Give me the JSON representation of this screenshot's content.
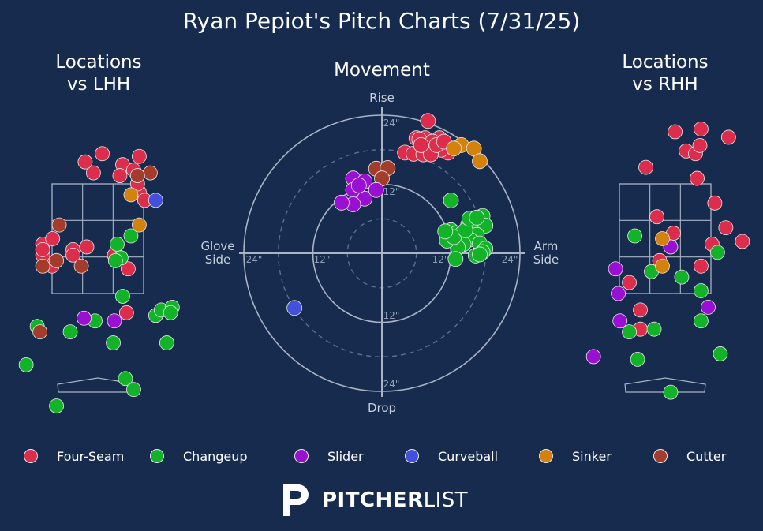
{
  "title": "Ryan Pepiot's Pitch Charts (7/31/25)",
  "brand": {
    "name_bold": "PITCHER",
    "name_light": "LIST"
  },
  "colors": {
    "background": "#162b4e",
    "Four-Seam": "#dc2e4c",
    "Changeup": "#13b329",
    "Slider": "#9a10d3",
    "Curveball": "#4350db",
    "Sinker": "#d4820e",
    "Cutter": "#a43c2c"
  },
  "legend": [
    "Four-Seam",
    "Changeup",
    "Slider",
    "Curveball",
    "Sinker",
    "Cutter"
  ],
  "chart_data": [
    {
      "type": "scatter",
      "title": "Locations\nvs LHH",
      "note": "Strike zone locations, catcher's view; x = plate_x (ft), y = plate_z (ft)",
      "xlim": [
        -2.3,
        2.3
      ],
      "ylim": [
        -0.2,
        5.0
      ],
      "zone": {
        "x": [
          -0.83,
          0.83
        ],
        "z": [
          1.5,
          3.5
        ]
      },
      "points": [
        {
          "pitch": "Four-Seam",
          "x": -2.05,
          "z": 3.6
        },
        {
          "pitch": "Four-Seam",
          "x": 0.08,
          "z": 4.05
        },
        {
          "pitch": "Four-Seam",
          "x": -1.0,
          "z": 2.4
        },
        {
          "pitch": "Four-Seam",
          "x": -1.0,
          "z": 2.2
        },
        {
          "pitch": "Four-Seam",
          "x": -0.82,
          "z": 2.5
        },
        {
          "pitch": "Four-Seam",
          "x": -0.83,
          "z": 2.0
        },
        {
          "pitch": "Four-Seam",
          "x": -0.45,
          "z": 2.3
        },
        {
          "pitch": "Four-Seam",
          "x": -0.08,
          "z": 3.7
        },
        {
          "pitch": "Four-Seam",
          "x": -0.23,
          "z": 3.9
        },
        {
          "pitch": "Four-Seam",
          "x": 0.45,
          "z": 3.85
        },
        {
          "pitch": "Four-Seam",
          "x": 0.75,
          "z": 4.0
        },
        {
          "pitch": "Four-Seam",
          "x": 0.65,
          "z": 3.75
        },
        {
          "pitch": "Four-Seam",
          "x": 0.4,
          "z": 3.65
        },
        {
          "pitch": "Four-Seam",
          "x": 0.75,
          "z": 3.35
        },
        {
          "pitch": "Four-Seam",
          "x": 0.72,
          "z": 3.5
        },
        {
          "pitch": "Four-Seam",
          "x": -0.2,
          "z": 2.35
        },
        {
          "pitch": "Four-Seam",
          "x": -0.45,
          "z": 2.2
        },
        {
          "pitch": "Four-Seam",
          "x": 0.3,
          "z": 2.2
        },
        {
          "pitch": "Four-Seam",
          "x": 0.55,
          "z": 1.95
        },
        {
          "pitch": "Four-Seam",
          "x": -1.0,
          "z": 2.3
        },
        {
          "pitch": "Four-Seam",
          "x": 0.52,
          "z": 1.15
        },
        {
          "pitch": "Four-Seam",
          "x": 0.85,
          "z": 3.2
        },
        {
          "pitch": "Changeup",
          "x": 0.6,
          "z": 2.55
        },
        {
          "pitch": "Changeup",
          "x": 0.35,
          "z": 2.4
        },
        {
          "pitch": "Changeup",
          "x": 0.42,
          "z": 2.15
        },
        {
          "pitch": "Changeup",
          "x": 0.45,
          "z": 1.45
        },
        {
          "pitch": "Changeup",
          "x": 0.32,
          "z": 2.1
        },
        {
          "pitch": "Changeup",
          "x": -0.05,
          "z": 1.0
        },
        {
          "pitch": "Changeup",
          "x": -0.5,
          "z": 0.8
        },
        {
          "pitch": "Changeup",
          "x": 0.28,
          "z": 0.6
        },
        {
          "pitch": "Changeup",
          "x": -1.1,
          "z": 0.9
        },
        {
          "pitch": "Changeup",
          "x": 1.05,
          "z": 1.1
        },
        {
          "pitch": "Changeup",
          "x": 1.15,
          "z": 1.2
        },
        {
          "pitch": "Changeup",
          "x": 1.25,
          "z": 0.6
        },
        {
          "pitch": "Changeup",
          "x": 0.65,
          "z": -0.25
        },
        {
          "pitch": "Changeup",
          "x": 0.5,
          "z": -0.05
        },
        {
          "pitch": "Changeup",
          "x": -0.75,
          "z": -0.55
        },
        {
          "pitch": "Changeup",
          "x": -1.3,
          "z": 0.2
        },
        {
          "pitch": "Changeup",
          "x": 1.35,
          "z": 1.25
        },
        {
          "pitch": "Changeup",
          "x": 1.32,
          "z": 1.15
        },
        {
          "pitch": "Slider",
          "x": -0.25,
          "z": 1.05
        },
        {
          "pitch": "Slider",
          "x": 0.3,
          "z": 1.0
        },
        {
          "pitch": "Curveball",
          "x": 1.05,
          "z": 3.2
        },
        {
          "pitch": "Sinker",
          "x": 0.75,
          "z": 2.75
        },
        {
          "pitch": "Sinker",
          "x": 0.6,
          "z": 3.3
        },
        {
          "pitch": "Cutter",
          "x": -0.7,
          "z": 2.75
        },
        {
          "pitch": "Cutter",
          "x": -0.3,
          "z": 2.0
        },
        {
          "pitch": "Cutter",
          "x": -0.75,
          "z": 2.1
        },
        {
          "pitch": "Cutter",
          "x": -1.0,
          "z": 2.0
        },
        {
          "pitch": "Cutter",
          "x": 0.95,
          "z": 3.7
        },
        {
          "pitch": "Cutter",
          "x": -1.05,
          "z": 0.8
        },
        {
          "pitch": "Cutter",
          "x": 0.72,
          "z": 3.65
        }
      ]
    },
    {
      "type": "scatter",
      "title": "Movement",
      "note": "Polar movement plot; x = horizontal break (in, + arm side), y = induced vertical break (in, + rise)",
      "rings": [
        6,
        12,
        18,
        24
      ],
      "axis_labels": {
        "top": "Rise",
        "bottom": "Drop",
        "left": "Glove\nSide",
        "right": "Arm\nSide"
      },
      "tick_labels": {
        "top": "24\"",
        "top_inner": "12\"",
        "bottom": "24\"",
        "bottom_inner": "12\"",
        "left": "24\"",
        "left_inner": "12\"",
        "right": "24\"",
        "right_inner": "12\""
      },
      "points": [
        {
          "pitch": "Four-Seam",
          "x": 8.0,
          "y": 23.0
        },
        {
          "pitch": "Four-Seam",
          "x": 6.0,
          "y": 20.0
        },
        {
          "pitch": "Four-Seam",
          "x": 7.5,
          "y": 20.0
        },
        {
          "pitch": "Four-Seam",
          "x": 10.0,
          "y": 20.0
        },
        {
          "pitch": "Four-Seam",
          "x": 9.0,
          "y": 18.0
        },
        {
          "pitch": "Four-Seam",
          "x": 11.5,
          "y": 17.5
        },
        {
          "pitch": "Four-Seam",
          "x": 4.0,
          "y": 17.5
        },
        {
          "pitch": "Four-Seam",
          "x": 5.5,
          "y": 17.3
        },
        {
          "pitch": "Four-Seam",
          "x": 6.5,
          "y": 19.8
        },
        {
          "pitch": "Four-Seam",
          "x": 7.5,
          "y": 18.6
        },
        {
          "pitch": "Four-Seam",
          "x": 8.8,
          "y": 19.4
        },
        {
          "pitch": "Four-Seam",
          "x": 7.2,
          "y": 17.2
        },
        {
          "pitch": "Four-Seam",
          "x": 10.3,
          "y": 18.0
        },
        {
          "pitch": "Four-Seam",
          "x": 8.5,
          "y": 17.2
        },
        {
          "pitch": "Four-Seam",
          "x": 6.8,
          "y": 18.8
        },
        {
          "pitch": "Four-Seam",
          "x": 9.5,
          "y": 18.8
        },
        {
          "pitch": "Four-Seam",
          "x": 10.8,
          "y": 19.4
        },
        {
          "pitch": "Sinker",
          "x": 13.8,
          "y": 18.8
        },
        {
          "pitch": "Sinker",
          "x": 12.5,
          "y": 18.2
        },
        {
          "pitch": "Sinker",
          "x": 16.0,
          "y": 18.2
        },
        {
          "pitch": "Sinker",
          "x": 17.0,
          "y": 16.0
        },
        {
          "pitch": "Cutter",
          "x": -1.0,
          "y": 14.7
        },
        {
          "pitch": "Cutter",
          "x": 1.0,
          "y": 14.8
        },
        {
          "pitch": "Cutter",
          "x": 0.0,
          "y": 13.0
        },
        {
          "pitch": "Slider",
          "x": -5.0,
          "y": 13.0
        },
        {
          "pitch": "Slider",
          "x": -3.0,
          "y": 12.5
        },
        {
          "pitch": "Slider",
          "x": -5.0,
          "y": 11.0
        },
        {
          "pitch": "Slider",
          "x": -3.0,
          "y": 9.5
        },
        {
          "pitch": "Slider",
          "x": -5.0,
          "y": 8.5
        },
        {
          "pitch": "Slider",
          "x": -7.0,
          "y": 8.8
        },
        {
          "pitch": "Slider",
          "x": -1.0,
          "y": 11.0
        },
        {
          "pitch": "Slider",
          "x": -4.0,
          "y": 11.8
        },
        {
          "pitch": "Curveball",
          "x": -15.2,
          "y": -9.5
        },
        {
          "pitch": "Changeup",
          "x": 12.0,
          "y": 9.2
        },
        {
          "pitch": "Changeup",
          "x": 12.0,
          "y": 4.0
        },
        {
          "pitch": "Changeup",
          "x": 13.0,
          "y": 3.5
        },
        {
          "pitch": "Changeup",
          "x": 14.0,
          "y": 3.5
        },
        {
          "pitch": "Changeup",
          "x": 15.0,
          "y": 5.0
        },
        {
          "pitch": "Changeup",
          "x": 16.0,
          "y": 5.3
        },
        {
          "pitch": "Changeup",
          "x": 17.5,
          "y": 6.5
        },
        {
          "pitch": "Changeup",
          "x": 18.0,
          "y": 4.8
        },
        {
          "pitch": "Changeup",
          "x": 16.5,
          "y": 3.2
        },
        {
          "pitch": "Changeup",
          "x": 15.3,
          "y": 2.4
        },
        {
          "pitch": "Changeup",
          "x": 14.2,
          "y": 1.6
        },
        {
          "pitch": "Changeup",
          "x": 13.2,
          "y": 1.0
        },
        {
          "pitch": "Changeup",
          "x": 11.3,
          "y": 2.2
        },
        {
          "pitch": "Changeup",
          "x": 12.5,
          "y": 2.8
        },
        {
          "pitch": "Changeup",
          "x": 17.0,
          "y": 1.7
        },
        {
          "pitch": "Changeup",
          "x": 18.0,
          "y": 0.8
        },
        {
          "pitch": "Changeup",
          "x": 17.5,
          "y": 0.2
        },
        {
          "pitch": "Changeup",
          "x": 16.3,
          "y": -0.4
        },
        {
          "pitch": "Changeup",
          "x": 17.0,
          "y": -0.2
        },
        {
          "pitch": "Changeup",
          "x": 12.8,
          "y": -1.0
        },
        {
          "pitch": "Changeup",
          "x": 14.5,
          "y": 4.0
        },
        {
          "pitch": "Changeup",
          "x": 15.2,
          "y": 6.0
        },
        {
          "pitch": "Changeup",
          "x": 16.5,
          "y": 6.2
        },
        {
          "pitch": "Changeup",
          "x": 11.0,
          "y": 3.8
        }
      ]
    },
    {
      "type": "scatter",
      "title": "Locations\nvs RHH",
      "note": "Strike zone locations, catcher's view; x = plate_x (ft), y = plate_z (ft)",
      "xlim": [
        -2.3,
        2.3
      ],
      "ylim": [
        -0.2,
        5.0
      ],
      "zone": {
        "x": [
          -0.83,
          0.83
        ],
        "z": [
          1.5,
          3.5
        ]
      },
      "points": [
        {
          "pitch": "Four-Seam",
          "x": 0.18,
          "z": 4.45
        },
        {
          "pitch": "Four-Seam",
          "x": 0.65,
          "z": 4.5
        },
        {
          "pitch": "Four-Seam",
          "x": 1.15,
          "z": 4.35
        },
        {
          "pitch": "Four-Seam",
          "x": 0.38,
          "z": 4.1
        },
        {
          "pitch": "Four-Seam",
          "x": 0.55,
          "z": 4.05
        },
        {
          "pitch": "Four-Seam",
          "x": 0.63,
          "z": 4.2
        },
        {
          "pitch": "Four-Seam",
          "x": -0.35,
          "z": 3.8
        },
        {
          "pitch": "Four-Seam",
          "x": 0.58,
          "z": 3.6
        },
        {
          "pitch": "Four-Seam",
          "x": 0.9,
          "z": 3.15
        },
        {
          "pitch": "Four-Seam",
          "x": -0.15,
          "z": 2.9
        },
        {
          "pitch": "Four-Seam",
          "x": 0.15,
          "z": 2.6
        },
        {
          "pitch": "Four-Seam",
          "x": 1.1,
          "z": 2.7
        },
        {
          "pitch": "Four-Seam",
          "x": 0.85,
          "z": 2.4
        },
        {
          "pitch": "Four-Seam",
          "x": 1.4,
          "z": 2.45
        },
        {
          "pitch": "Four-Seam",
          "x": -0.1,
          "z": 2.1
        },
        {
          "pitch": "Four-Seam",
          "x": 0.65,
          "z": 2.0
        },
        {
          "pitch": "Four-Seam",
          "x": -0.65,
          "z": 1.7
        },
        {
          "pitch": "Four-Seam",
          "x": -0.45,
          "z": 1.2
        },
        {
          "pitch": "Four-Seam",
          "x": -0.45,
          "z": 0.85
        },
        {
          "pitch": "Changeup",
          "x": -0.55,
          "z": 2.55
        },
        {
          "pitch": "Changeup",
          "x": -0.25,
          "z": 1.9
        },
        {
          "pitch": "Changeup",
          "x": 0.3,
          "z": 1.8
        },
        {
          "pitch": "Changeup",
          "x": 0.65,
          "z": 1.55
        },
        {
          "pitch": "Changeup",
          "x": 0.95,
          "z": 2.25
        },
        {
          "pitch": "Changeup",
          "x": 0.65,
          "z": 1.0
        },
        {
          "pitch": "Changeup",
          "x": -0.65,
          "z": 0.8
        },
        {
          "pitch": "Changeup",
          "x": -0.2,
          "z": 0.85
        },
        {
          "pitch": "Changeup",
          "x": -0.5,
          "z": 0.3
        },
        {
          "pitch": "Changeup",
          "x": 1.0,
          "z": 0.4
        },
        {
          "pitch": "Changeup",
          "x": 0.1,
          "z": -0.3
        },
        {
          "pitch": "Slider",
          "x": -0.9,
          "z": 1.95
        },
        {
          "pitch": "Slider",
          "x": -0.85,
          "z": 1.5
        },
        {
          "pitch": "Slider",
          "x": 0.1,
          "z": 2.35
        },
        {
          "pitch": "Slider",
          "x": 0.78,
          "z": 1.25
        },
        {
          "pitch": "Slider",
          "x": -0.82,
          "z": 1.0
        },
        {
          "pitch": "Slider",
          "x": -1.3,
          "z": 0.35
        },
        {
          "pitch": "Sinker",
          "x": -0.05,
          "z": 2.5
        },
        {
          "pitch": "Sinker",
          "x": -0.05,
          "z": 2.0
        }
      ]
    }
  ]
}
